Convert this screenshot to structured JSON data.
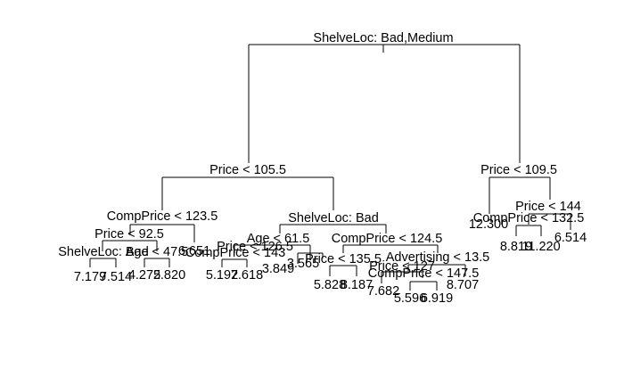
{
  "tree": {
    "root_split": "ShelveLoc: Bad,Medium",
    "splits": {
      "price_105_5": "Price < 105.5",
      "price_109_5": "Price < 109.5",
      "compprice_123_5": "CompPrice < 123.5",
      "shelveloc_bad_a": "ShelveLoc: Bad",
      "price_92_5": "Price < 92.5",
      "shelveloc_bad_b": "ShelveLoc: Bad",
      "age_47_5": "Age < 47.5",
      "age_61_5": "Age < 61.5",
      "compprice_124_5": "CompPrice < 124.5",
      "compprice_143": "CompPrice < 143",
      "price_126_5": "Price < 126.5",
      "price_135_5": "Price < 135.5",
      "advertising_13_5": "Advertising < 13.5",
      "price_127": "Price < 127",
      "compprice_147_5": "CompPrice < 147.5",
      "compprice_132_5": "CompPrice < 132.5",
      "price_144": "Price < 144"
    },
    "leaves": {
      "l1": "7.179",
      "l2": "7.514",
      "l3": "4.275",
      "l4": "2.820",
      "l5": "6.651",
      "l6": "5.192",
      "l7": "7.618",
      "l8": "3.849",
      "l9": "3.565",
      "l10": "5.828",
      "l11": "8.187",
      "l12": "7.682",
      "l13": "5.596",
      "l14": "6.919",
      "l15": "8.707",
      "l16": "12.300",
      "l17": "8.819",
      "l18": "11.220",
      "l19": "6.514"
    }
  }
}
